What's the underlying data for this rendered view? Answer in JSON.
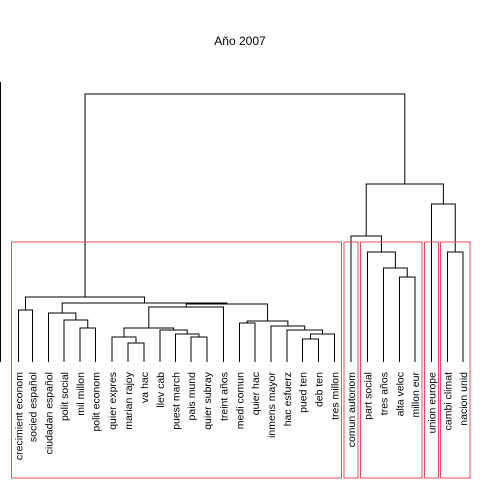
{
  "title": "Año 2007",
  "leaves": [
    "crecimient econom",
    "socied español",
    "ciudadan español",
    "polit social",
    "mil millon",
    "polit econom",
    "quier expres",
    "marian rajoy",
    "va hac",
    "llev cab",
    "puest march",
    "pais mund",
    "quier subray",
    "treint años",
    "medi comun",
    "quier hac",
    "inmens mayor",
    "hac esfuerz",
    "pued ten",
    "deb ten",
    "tres millon",
    "comun autonom",
    "part social",
    "tres años",
    "alta veloc",
    "millon eur",
    "union europe",
    "cambi climat",
    "nacion unid"
  ],
  "highlighted_clusters": [
    {
      "from": 0,
      "to": 20
    },
    {
      "from": 21,
      "to": 21
    },
    {
      "from": 22,
      "to": 25
    },
    {
      "from": 26,
      "to": 26
    },
    {
      "from": 27,
      "to": 28
    }
  ],
  "colors": {
    "links": "#000000",
    "cluster_box": "#e8505b",
    "background": "#ffffff"
  }
}
